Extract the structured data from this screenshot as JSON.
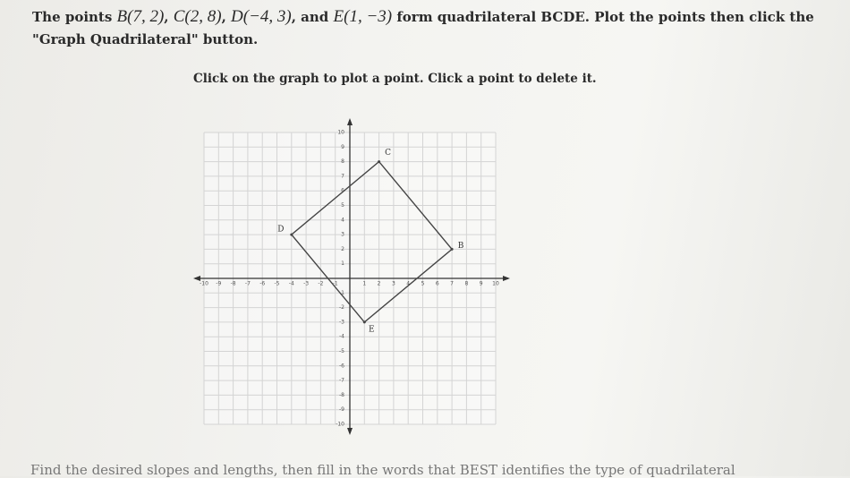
{
  "problem": {
    "parts": [
      "The points ",
      "B(7, 2)",
      ", ",
      "C(2, 8)",
      ", ",
      "D(−4, 3)",
      ", and ",
      "E(1, −3)",
      " form quadrilateral BCDE. Plot the points then click the \"Graph Quadrilateral\" button."
    ]
  },
  "instruction": "Click on the graph to plot a point. Click a point to delete it.",
  "graph": {
    "xlim": [
      -10,
      10
    ],
    "ylim": [
      -10,
      10
    ],
    "xticks": [
      -10,
      -9,
      -8,
      -7,
      -6,
      -5,
      -4,
      -3,
      -2,
      -1,
      1,
      2,
      3,
      4,
      5,
      6,
      7,
      8,
      9,
      10
    ],
    "yticks": [
      -10,
      -9,
      -8,
      -7,
      -6,
      -5,
      -4,
      -3,
      -2,
      -1,
      1,
      2,
      3,
      4,
      5,
      6,
      7,
      8,
      9,
      10
    ],
    "points": [
      {
        "label": "B",
        "x": 7,
        "y": 2
      },
      {
        "label": "C",
        "x": 2,
        "y": 8
      },
      {
        "label": "D",
        "x": -4,
        "y": 3
      },
      {
        "label": "E",
        "x": 1,
        "y": -3
      }
    ]
  },
  "footer": "Find the desired slopes and lengths, then fill in the words that BEST identifies the type of quadrilateral"
}
